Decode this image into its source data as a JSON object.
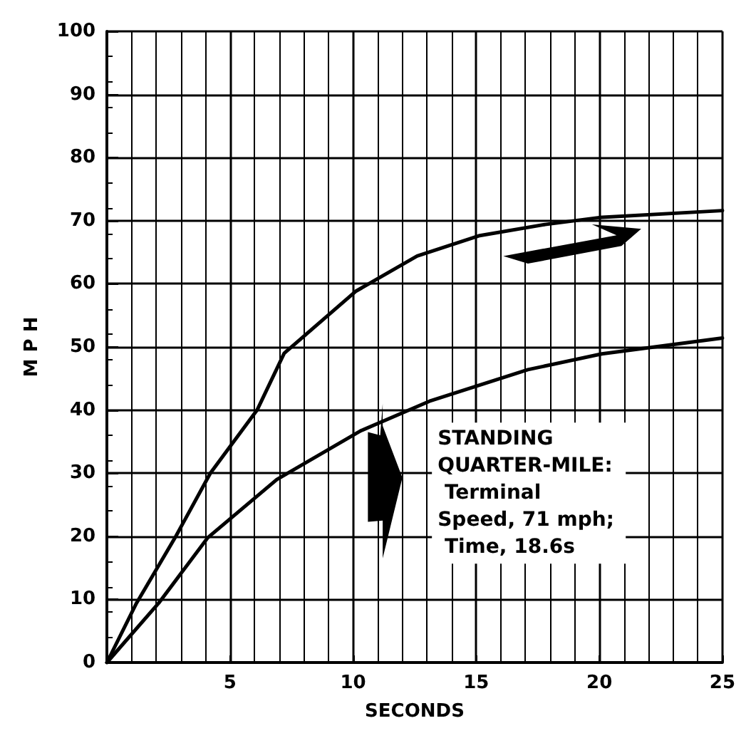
{
  "chart_data": {
    "type": "line",
    "xlabel": "SECONDS",
    "ylabel": "M P H",
    "xlim": [
      0,
      25
    ],
    "xticks": [
      {
        "value": 0,
        "label": null
      },
      5,
      10,
      15,
      20,
      25
    ],
    "ylim": [
      0,
      100
    ],
    "yticks": [
      0,
      10,
      20,
      30,
      40,
      50,
      60,
      70,
      80,
      90,
      100
    ],
    "grid": true,
    "marker": "none",
    "line_style": "solid",
    "annotations": [
      "STANDING QUARTER-MILE: Terminal Speed, 71 mph; Time, 18.6s"
    ],
    "series": [
      {
        "color": "#000000",
        "x": [
          0,
          1.2,
          2.8,
          4.2,
          6.1,
          7.2,
          10.1,
          12.6,
          15.1,
          17.8,
          20,
          25
        ],
        "values": [
          0,
          9.4,
          20,
          30,
          40,
          49,
          58.8,
          64.4,
          67.6,
          69.4,
          70.5,
          71.6
        ]
      },
      {
        "color": "#000000",
        "x": [
          0,
          2.1,
          4.1,
          6.9,
          10.3,
          13.1,
          17.1,
          20.1,
          25
        ],
        "values": [
          0,
          9.4,
          19.8,
          29,
          36.7,
          41.4,
          46.4,
          48.9,
          51.4
        ]
      }
    ]
  }
}
